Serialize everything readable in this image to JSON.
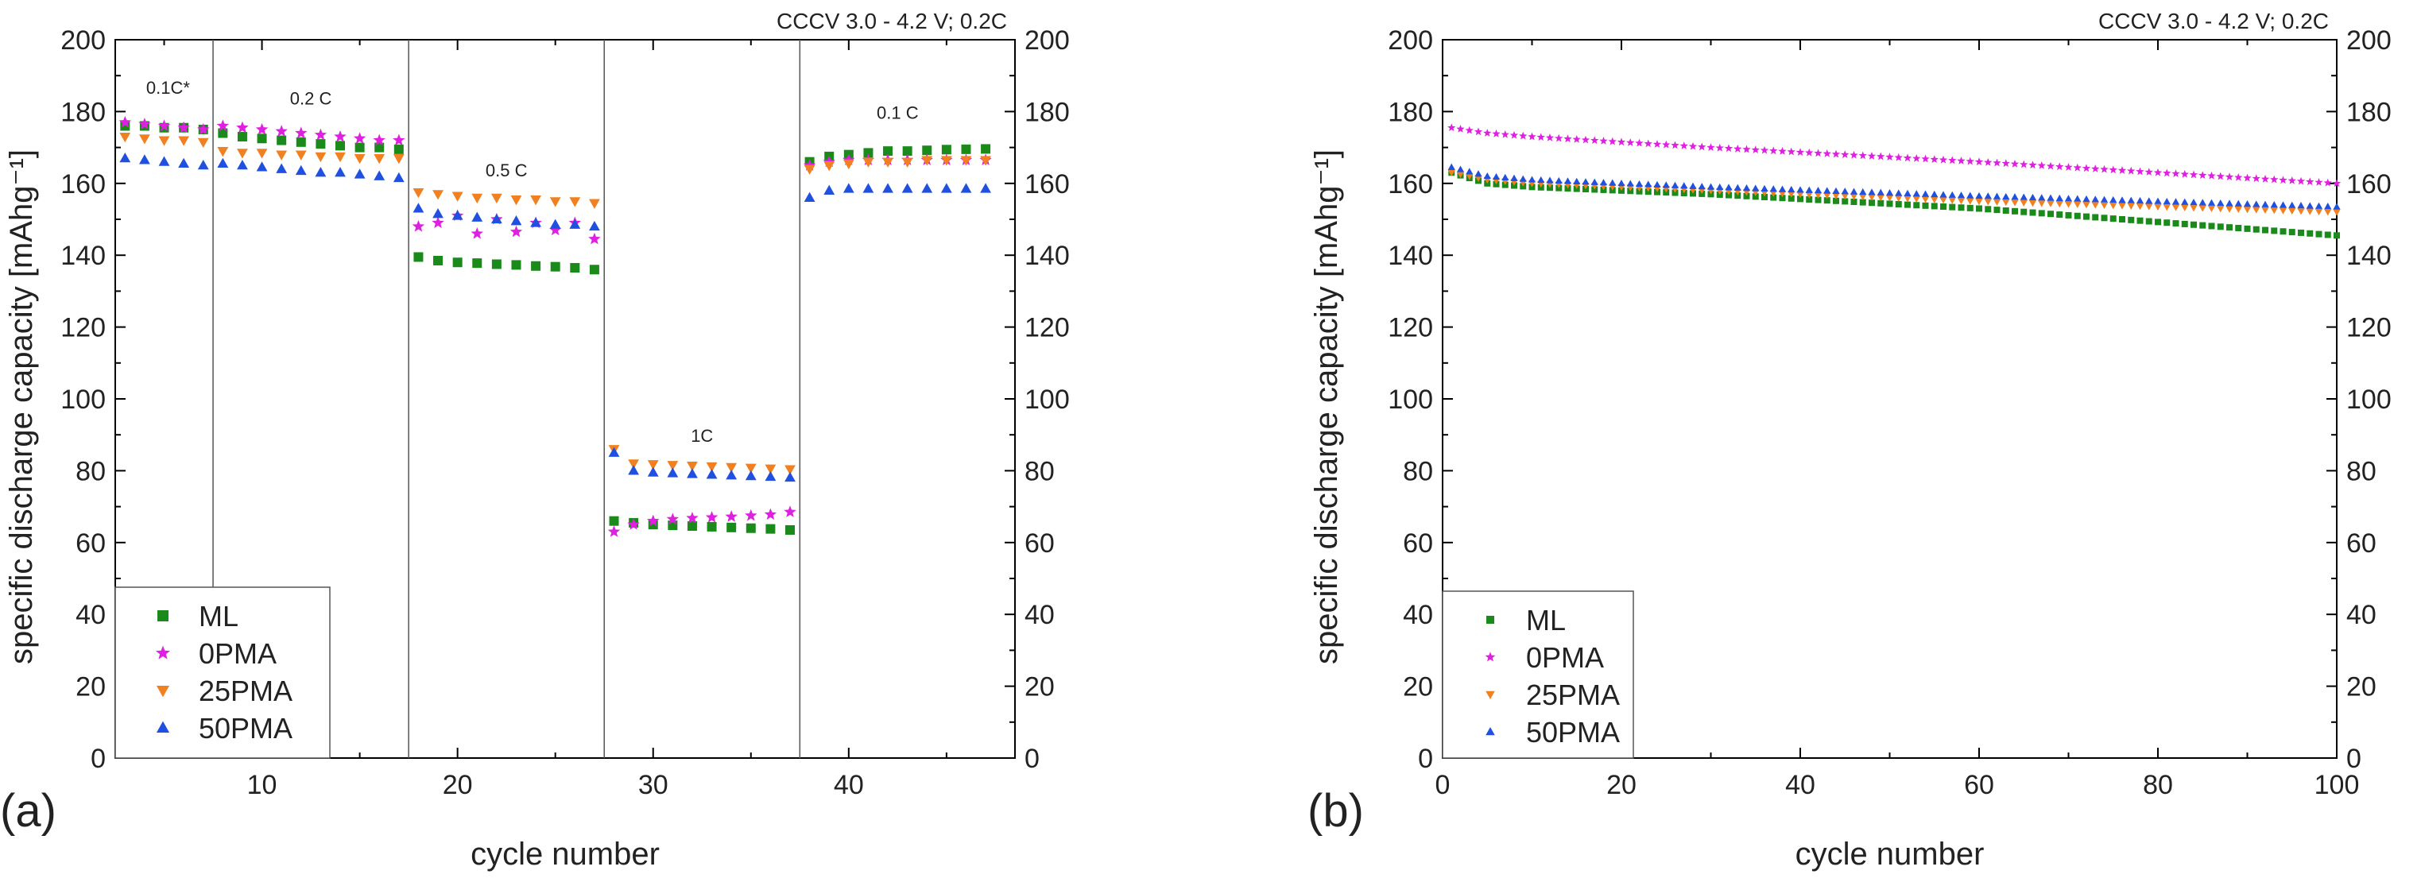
{
  "chart_data": [
    {
      "panel_label": "(a)",
      "type": "scatter",
      "condition_note": "CCCV 3.0 - 4.2 V; 0.2C",
      "xlabel": "cycle number",
      "ylabel": "specific discharge capacity [mAhg⁻¹]",
      "xlim": [
        2.5,
        48.5
      ],
      "ylim": [
        0,
        200
      ],
      "xticks": [
        10,
        20,
        30,
        40
      ],
      "yticks": [
        0,
        20,
        40,
        60,
        80,
        100,
        120,
        140,
        160,
        180,
        200
      ],
      "legend": {
        "position": "bottom-left",
        "entries": [
          "ML",
          "0PMA",
          "25PMA",
          "50PMA"
        ]
      },
      "separators_x": [
        7.5,
        17.5,
        27.5,
        37.5
      ],
      "rate_labels": [
        {
          "text": "0.1C*",
          "x": 5.2,
          "y": 185
        },
        {
          "text": "0.2 C",
          "x": 12.5,
          "y": 182
        },
        {
          "text": "0.5 C",
          "x": 22.5,
          "y": 162
        },
        {
          "text": "1C",
          "x": 32.5,
          "y": 88
        },
        {
          "text": "0.1 C",
          "x": 42.5,
          "y": 178
        }
      ],
      "series": [
        {
          "name": "ML",
          "color": "#1a8a1a",
          "marker": "square",
          "x": [
            3,
            4,
            5,
            6,
            7,
            8,
            9,
            10,
            11,
            12,
            13,
            14,
            15,
            16,
            17,
            18,
            19,
            20,
            21,
            22,
            23,
            24,
            25,
            26,
            27,
            28,
            29,
            30,
            31,
            32,
            33,
            34,
            35,
            36,
            37,
            38,
            39,
            40,
            41,
            42,
            43,
            44,
            45,
            46,
            47
          ],
          "y": [
            176,
            176,
            175.5,
            175.5,
            175,
            174,
            173,
            172.5,
            172,
            171.5,
            171,
            170.5,
            170,
            170,
            169.5,
            139.5,
            138.5,
            138,
            137.8,
            137.5,
            137.3,
            137,
            136.8,
            136.5,
            136,
            66,
            65.5,
            65,
            64.8,
            64.6,
            64.4,
            64.2,
            64,
            63.8,
            63.5,
            166,
            167.5,
            168,
            168.5,
            169,
            169,
            169.2,
            169.4,
            169.5,
            169.6
          ]
        },
        {
          "name": "0PMA",
          "color": "#e020e0",
          "marker": "star",
          "x": [
            3,
            4,
            5,
            6,
            7,
            8,
            9,
            10,
            11,
            12,
            13,
            14,
            15,
            16,
            17,
            18,
            19,
            20,
            21,
            22,
            23,
            24,
            25,
            26,
            27,
            28,
            29,
            30,
            31,
            32,
            33,
            34,
            35,
            36,
            37,
            38,
            39,
            40,
            41,
            42,
            43,
            44,
            45,
            46,
            47
          ],
          "y": [
            177,
            176.5,
            176,
            175.5,
            175,
            176,
            175.5,
            175,
            174.5,
            174,
            173.5,
            173,
            172.5,
            172,
            172,
            148,
            149,
            151,
            146,
            150,
            146.5,
            149,
            147,
            149,
            144.5,
            63,
            65,
            66,
            66.5,
            66.8,
            67,
            67.2,
            67.5,
            67.8,
            68.5,
            165,
            166,
            166.5,
            166.5,
            166.5,
            166.5,
            166.5,
            166.5,
            166.5,
            166.5
          ]
        },
        {
          "name": "25PMA",
          "color": "#f08020",
          "marker": "triangle-down",
          "x": [
            3,
            4,
            5,
            6,
            7,
            8,
            9,
            10,
            11,
            12,
            13,
            14,
            15,
            16,
            17,
            18,
            19,
            20,
            21,
            22,
            23,
            24,
            25,
            26,
            27,
            28,
            29,
            30,
            31,
            32,
            33,
            34,
            35,
            36,
            37,
            38,
            39,
            40,
            41,
            42,
            43,
            44,
            45,
            46,
            47
          ],
          "y": [
            173,
            172.5,
            172,
            172,
            171.5,
            169,
            168.5,
            168.5,
            168,
            168,
            167.5,
            167.5,
            167,
            167,
            167,
            157.5,
            157,
            156.5,
            156,
            156,
            155.5,
            155.5,
            155,
            155,
            154.5,
            86,
            82,
            81.8,
            81.6,
            81.4,
            81.2,
            81,
            80.8,
            80.6,
            80.4,
            164,
            165,
            165.5,
            166,
            166,
            166,
            166.5,
            166.5,
            166.5,
            166.5
          ]
        },
        {
          "name": "50PMA",
          "color": "#2050e0",
          "marker": "triangle-up",
          "x": [
            3,
            4,
            5,
            6,
            7,
            8,
            9,
            10,
            11,
            12,
            13,
            14,
            15,
            16,
            17,
            18,
            19,
            20,
            21,
            22,
            23,
            24,
            25,
            26,
            27,
            28,
            29,
            30,
            31,
            32,
            33,
            34,
            35,
            36,
            37,
            38,
            39,
            40,
            41,
            42,
            43,
            44,
            45,
            46,
            47
          ],
          "y": [
            167,
            166.5,
            166,
            165.5,
            165,
            165.5,
            165,
            164.5,
            164,
            163.5,
            163,
            163,
            162.5,
            162,
            161.5,
            153,
            151.5,
            151,
            150.5,
            150,
            149.5,
            149,
            148.5,
            148.5,
            148,
            85,
            80,
            79.5,
            79.3,
            79.1,
            78.9,
            78.7,
            78.5,
            78.3,
            78.1,
            156,
            158,
            158.5,
            158.5,
            158.5,
            158.5,
            158.5,
            158.5,
            158.5,
            158.5
          ]
        }
      ]
    },
    {
      "panel_label": "(b)",
      "type": "scatter",
      "condition_note": "CCCV 3.0 - 4.2 V; 0.2C",
      "xlabel": "cycle number",
      "ylabel": "specific discharge capacity [mAhg⁻¹]",
      "xlim": [
        0,
        100
      ],
      "ylim": [
        0,
        200
      ],
      "xticks": [
        0,
        20,
        40,
        60,
        80,
        100
      ],
      "yticks": [
        0,
        20,
        40,
        60,
        80,
        100,
        120,
        140,
        160,
        180,
        200
      ],
      "legend": {
        "position": "bottom-left",
        "entries": [
          "ML",
          "0PMA",
          "25PMA",
          "50PMA"
        ]
      },
      "series_model": "values sampled every cycle from 1 to 100; each series linear-interpolated between the listed anchor points",
      "series": [
        {
          "name": "ML",
          "color": "#1a8a1a",
          "marker": "square",
          "anchors_x": [
            1,
            5,
            10,
            30,
            60,
            100
          ],
          "anchors_y": [
            163,
            160,
            159,
            157,
            153,
            145.5
          ]
        },
        {
          "name": "0PMA",
          "color": "#e020e0",
          "marker": "star",
          "anchors_x": [
            1,
            5,
            10,
            30,
            60,
            100
          ],
          "anchors_y": [
            175.5,
            174,
            173,
            170,
            166,
            160
          ]
        },
        {
          "name": "25PMA",
          "color": "#f08020",
          "marker": "triangle-down",
          "anchors_x": [
            1,
            5,
            10,
            30,
            60,
            100
          ],
          "anchors_y": [
            163,
            161,
            160,
            158,
            155,
            152
          ]
        },
        {
          "name": "50PMA",
          "color": "#2050e0",
          "marker": "triangle-up",
          "anchors_x": [
            1,
            5,
            10,
            30,
            60,
            100
          ],
          "anchors_y": [
            164.5,
            162,
            161,
            159,
            156.5,
            153.5
          ]
        }
      ]
    }
  ]
}
